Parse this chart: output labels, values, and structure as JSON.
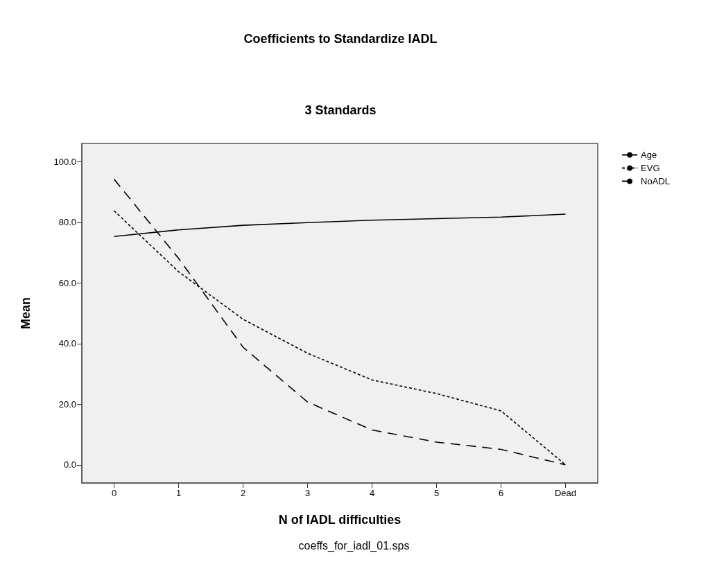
{
  "chart_data": {
    "type": "line",
    "title": "Coefficients to Standardize IADL",
    "subtitle": "3 Standards",
    "xlabel": "N of IADL difficulties",
    "ylabel": "Mean",
    "categories": [
      "0",
      "1",
      "2",
      "3",
      "4",
      "5",
      "6",
      "Dead"
    ],
    "series": [
      {
        "name": "Age",
        "color": "#000000",
        "line_style": "solid",
        "values": [
          75.3,
          77.5,
          79.0,
          79.9,
          80.7,
          81.2,
          81.7,
          82.7
        ]
      },
      {
        "name": "EVG",
        "color": "#000000",
        "line_style": "dotted",
        "values": [
          83.8,
          63.7,
          48.0,
          36.8,
          28.0,
          23.5,
          17.8,
          0
        ]
      },
      {
        "name": "NoADL",
        "color": "#000000",
        "line_style": "dashed",
        "values": [
          94.2,
          68.1,
          38.8,
          20.7,
          11.5,
          7.5,
          5.1,
          0
        ]
      }
    ],
    "ylim": [
      -6,
      106
    ],
    "yticks": [
      {
        "value": 0,
        "label": "0.0"
      },
      {
        "value": 20,
        "label": "20.0"
      },
      {
        "value": 40,
        "label": "40.0"
      },
      {
        "value": 60,
        "label": "60.0"
      },
      {
        "value": 80,
        "label": "80.0"
      },
      {
        "value": 100,
        "label": "100.0"
      }
    ],
    "grid": false,
    "legend": "top right",
    "marker": "none",
    "annotations": [
      "coeffs_for_iadl_01.sps"
    ]
  }
}
